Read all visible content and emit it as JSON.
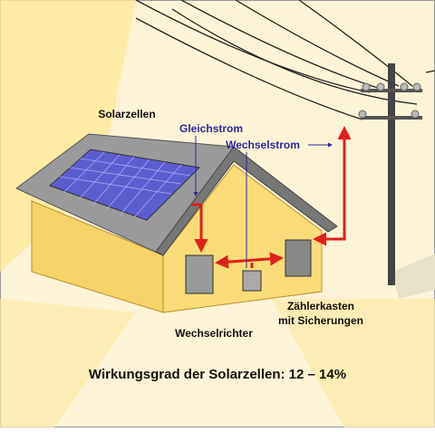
{
  "labels": [
    "Solarzellen",
    "Gleichstrom",
    "Wechselstrom",
    "Wechselrichter",
    "Zählerkasten",
    "mit Sicherungen"
  ],
  "caption": "Wirkungsgrad der Solarzellen: 12 – 14%"
}
